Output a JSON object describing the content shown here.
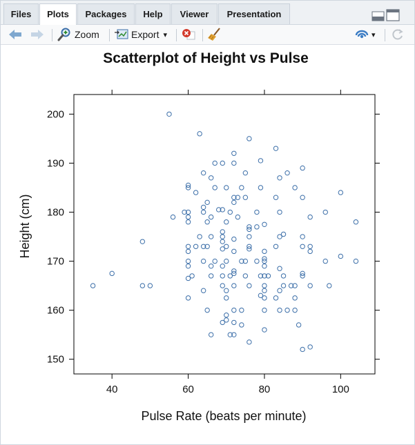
{
  "tabs": [
    {
      "label": "Files",
      "active": false
    },
    {
      "label": "Plots",
      "active": true
    },
    {
      "label": "Packages",
      "active": false
    },
    {
      "label": "Help",
      "active": false
    },
    {
      "label": "Viewer",
      "active": false
    },
    {
      "label": "Presentation",
      "active": false
    }
  ],
  "toolbar": {
    "zoom_label": "Zoom",
    "export_label": "Export",
    "export_caret": "▾",
    "publish_caret": "▾"
  },
  "colors": {
    "point": "#3b6ea8",
    "back_arrow": "#7fa8cf",
    "forward_arrow": "#c5d5e5",
    "remove": "#d33a2c",
    "publish": "#3b7cc4"
  },
  "icons": [
    "back-arrow-icon",
    "forward-arrow-icon",
    "zoom-icon",
    "export-icon",
    "remove-plot-icon",
    "clear-all-icon",
    "publish-icon",
    "refresh-icon",
    "minimize-icon",
    "maximize-icon"
  ],
  "chart_data": {
    "type": "scatter",
    "title": "Scatterplot of Height vs Pulse",
    "xlabel": "Pulse Rate (beats per minute)",
    "ylabel": "Height (cm)",
    "xlim": [
      30,
      109
    ],
    "ylim": [
      147,
      204
    ],
    "xticks": [
      40,
      60,
      80,
      100
    ],
    "yticks": [
      150,
      160,
      170,
      180,
      190,
      200
    ],
    "points": [
      [
        55,
        200
      ],
      [
        63,
        196
      ],
      [
        76,
        195
      ],
      [
        83,
        193
      ],
      [
        72,
        192
      ],
      [
        72,
        190
      ],
      [
        67,
        190
      ],
      [
        69,
        190
      ],
      [
        79,
        190.5
      ],
      [
        90,
        189
      ],
      [
        64,
        188
      ],
      [
        75,
        188
      ],
      [
        86,
        188
      ],
      [
        66,
        187
      ],
      [
        84,
        187
      ],
      [
        60,
        185.5
      ],
      [
        60,
        185
      ],
      [
        67,
        185
      ],
      [
        70,
        185
      ],
      [
        74,
        185
      ],
      [
        79,
        185
      ],
      [
        88,
        185
      ],
      [
        62,
        184
      ],
      [
        100,
        184
      ],
      [
        72,
        183
      ],
      [
        73,
        183
      ],
      [
        75,
        183
      ],
      [
        83,
        183
      ],
      [
        90,
        183
      ],
      [
        65,
        182
      ],
      [
        72,
        182
      ],
      [
        64,
        181
      ],
      [
        68,
        180.5
      ],
      [
        69,
        180.5
      ],
      [
        59,
        180
      ],
      [
        60,
        180
      ],
      [
        64,
        180
      ],
      [
        71,
        180
      ],
      [
        78,
        180
      ],
      [
        84,
        180
      ],
      [
        96,
        180
      ],
      [
        56,
        179
      ],
      [
        60,
        179
      ],
      [
        66,
        179
      ],
      [
        73,
        179
      ],
      [
        92,
        179
      ],
      [
        60,
        178
      ],
      [
        65,
        178
      ],
      [
        70,
        178
      ],
      [
        104,
        178
      ],
      [
        80,
        177.5
      ],
      [
        76,
        177
      ],
      [
        78,
        177
      ],
      [
        76,
        176.5
      ],
      [
        69,
        176
      ],
      [
        69,
        175
      ],
      [
        63,
        175
      ],
      [
        66,
        175
      ],
      [
        84,
        175
      ],
      [
        85,
        175.5
      ],
      [
        90,
        175
      ],
      [
        72,
        174.5
      ],
      [
        76,
        175
      ],
      [
        48,
        174
      ],
      [
        69,
        174
      ],
      [
        60,
        173
      ],
      [
        62,
        173
      ],
      [
        64,
        173
      ],
      [
        65,
        173
      ],
      [
        70,
        173
      ],
      [
        76,
        173
      ],
      [
        83,
        173
      ],
      [
        90,
        173
      ],
      [
        92,
        173
      ],
      [
        60,
        172
      ],
      [
        69,
        172.5
      ],
      [
        72,
        172
      ],
      [
        80,
        172
      ],
      [
        92,
        172
      ],
      [
        76,
        172.5
      ],
      [
        64,
        170
      ],
      [
        67,
        170
      ],
      [
        70,
        170
      ],
      [
        74,
        170
      ],
      [
        75,
        170
      ],
      [
        78,
        170
      ],
      [
        80,
        170
      ],
      [
        80,
        170.5
      ],
      [
        96,
        170
      ],
      [
        104,
        170
      ],
      [
        60,
        169
      ],
      [
        60,
        170
      ],
      [
        66,
        169
      ],
      [
        69,
        169
      ],
      [
        80,
        169
      ],
      [
        84,
        168.5
      ],
      [
        40,
        167.5
      ],
      [
        72,
        168
      ],
      [
        72,
        167.5
      ],
      [
        75,
        167
      ],
      [
        79,
        167
      ],
      [
        80,
        167
      ],
      [
        81,
        167
      ],
      [
        85,
        167
      ],
      [
        90,
        167
      ],
      [
        90,
        167.5
      ],
      [
        100,
        171
      ],
      [
        60,
        166.5
      ],
      [
        61,
        167
      ],
      [
        66,
        167
      ],
      [
        69,
        167
      ],
      [
        71,
        167
      ],
      [
        35,
        165
      ],
      [
        48,
        165
      ],
      [
        50,
        165
      ],
      [
        69,
        165
      ],
      [
        72,
        165
      ],
      [
        76,
        165
      ],
      [
        80,
        165
      ],
      [
        85,
        165
      ],
      [
        87,
        165
      ],
      [
        88,
        165
      ],
      [
        92,
        165
      ],
      [
        97,
        165
      ],
      [
        64,
        164
      ],
      [
        70,
        164
      ],
      [
        80,
        164
      ],
      [
        84,
        164
      ],
      [
        79,
        163
      ],
      [
        83,
        162.5
      ],
      [
        60,
        162.5
      ],
      [
        70,
        162.5
      ],
      [
        80,
        162.5
      ],
      [
        88,
        162.5
      ],
      [
        65,
        160
      ],
      [
        72,
        160
      ],
      [
        74,
        160
      ],
      [
        80,
        160
      ],
      [
        84,
        160
      ],
      [
        86,
        160
      ],
      [
        88,
        160
      ],
      [
        70,
        159
      ],
      [
        70,
        158
      ],
      [
        69,
        157.5
      ],
      [
        72,
        157.5
      ],
      [
        74,
        157
      ],
      [
        89,
        157
      ],
      [
        80,
        156
      ],
      [
        66,
        155
      ],
      [
        71,
        155
      ],
      [
        72,
        155
      ],
      [
        76,
        153.5
      ],
      [
        92,
        152.5
      ],
      [
        90,
        152
      ]
    ]
  }
}
